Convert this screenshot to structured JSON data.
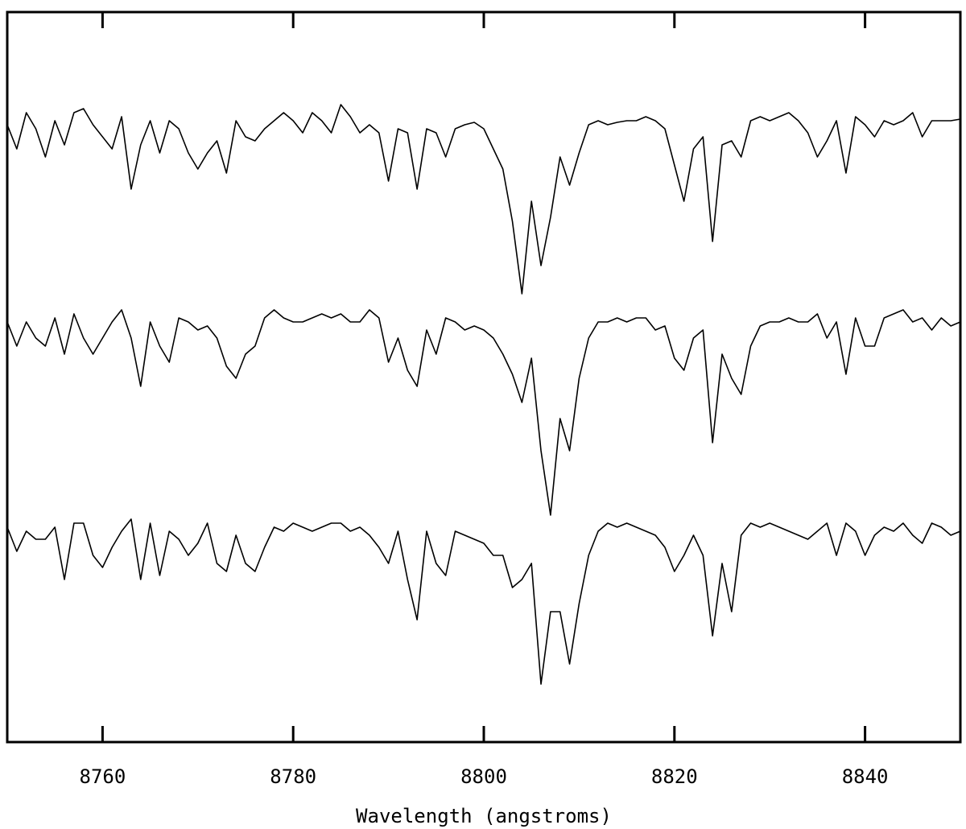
{
  "chart_data": {
    "type": "line",
    "xlabel": "Wavelength (angstroms)",
    "xlim": [
      8750,
      8850
    ],
    "xticks": [
      8760,
      8780,
      8800,
      8820,
      8840
    ],
    "ylim": [
      0,
      907
    ],
    "x": [
      8750,
      8751,
      8752,
      8753,
      8754,
      8755,
      8756,
      8757,
      8758,
      8759,
      8760,
      8761,
      8762,
      8763,
      8764,
      8765,
      8766,
      8767,
      8768,
      8769,
      8770,
      8771,
      8772,
      8773,
      8774,
      8775,
      8776,
      8777,
      8778,
      8779,
      8780,
      8781,
      8782,
      8783,
      8784,
      8785,
      8786,
      8787,
      8788,
      8789,
      8790,
      8791,
      8792,
      8793,
      8794,
      8795,
      8796,
      8797,
      8798,
      8799,
      8800,
      8801,
      8802,
      8803,
      8804,
      8805,
      8806,
      8807,
      8808,
      8809,
      8810,
      8811,
      8812,
      8813,
      8814,
      8815,
      8816,
      8817,
      8818,
      8819,
      8820,
      8821,
      8822,
      8823,
      8824,
      8825,
      8826,
      8827,
      8828,
      8829,
      8830,
      8831,
      8832,
      8833,
      8834,
      8835,
      8836,
      8837,
      8838,
      8839,
      8840,
      8841,
      8842,
      8843,
      8844,
      8845,
      8846,
      8847,
      8848,
      8849,
      8850
    ],
    "series": [
      {
        "color": "#000000",
        "values": [
          767,
          737,
          782,
          762,
          727,
          772,
          742,
          782,
          787,
          767,
          752,
          737,
          777,
          687,
          742,
          772,
          732,
          772,
          762,
          732,
          712,
          732,
          747,
          707,
          772,
          752,
          747,
          762,
          772,
          782,
          772,
          757,
          782,
          772,
          757,
          792,
          777,
          757,
          767,
          757,
          697,
          762,
          757,
          687,
          762,
          757,
          727,
          762,
          767,
          770,
          762,
          737,
          712,
          647,
          557,
          672,
          592,
          652,
          727,
          692,
          732,
          767,
          772,
          767,
          770,
          772,
          772,
          777,
          772,
          762,
          717,
          672,
          737,
          752,
          622,
          742,
          747,
          727,
          772,
          777,
          772,
          777,
          782,
          772,
          757,
          727,
          747,
          772,
          707,
          777,
          767,
          752,
          772,
          767,
          772,
          782,
          752,
          772,
          772,
          772,
          774
        ]
      },
      {
        "color": "#000000",
        "values": [
          522,
          492,
          522,
          502,
          492,
          527,
          482,
          532,
          502,
          482,
          502,
          522,
          537,
          502,
          442,
          522,
          492,
          472,
          527,
          522,
          512,
          517,
          502,
          467,
          452,
          482,
          492,
          527,
          537,
          527,
          522,
          522,
          527,
          532,
          527,
          532,
          522,
          522,
          537,
          527,
          472,
          502,
          462,
          442,
          512,
          482,
          527,
          522,
          512,
          517,
          512,
          502,
          482,
          457,
          422,
          477,
          362,
          282,
          402,
          362,
          452,
          502,
          522,
          522,
          527,
          522,
          527,
          527,
          512,
          517,
          477,
          462,
          502,
          512,
          372,
          482,
          452,
          432,
          492,
          517,
          522,
          522,
          527,
          522,
          522,
          532,
          502,
          522,
          457,
          527,
          492,
          492,
          527,
          532,
          537,
          522,
          527,
          512,
          527,
          517,
          522
        ]
      },
      {
        "color": "#000000",
        "values": [
          267,
          237,
          262,
          252,
          252,
          267,
          202,
          272,
          272,
          232,
          217,
          242,
          262,
          277,
          202,
          272,
          207,
          262,
          252,
          232,
          247,
          272,
          222,
          212,
          257,
          222,
          212,
          242,
          267,
          262,
          272,
          267,
          262,
          267,
          272,
          272,
          262,
          267,
          257,
          242,
          222,
          262,
          202,
          152,
          262,
          222,
          207,
          262,
          257,
          252,
          247,
          232,
          232,
          192,
          202,
          222,
          72,
          162,
          162,
          97,
          172,
          232,
          262,
          272,
          267,
          272,
          267,
          262,
          257,
          242,
          212,
          232,
          257,
          232,
          132,
          222,
          162,
          257,
          272,
          267,
          272,
          267,
          262,
          257,
          252,
          262,
          272,
          232,
          272,
          262,
          232,
          257,
          267,
          262,
          272,
          257,
          247,
          272,
          267,
          257,
          262
        ]
      }
    ]
  }
}
